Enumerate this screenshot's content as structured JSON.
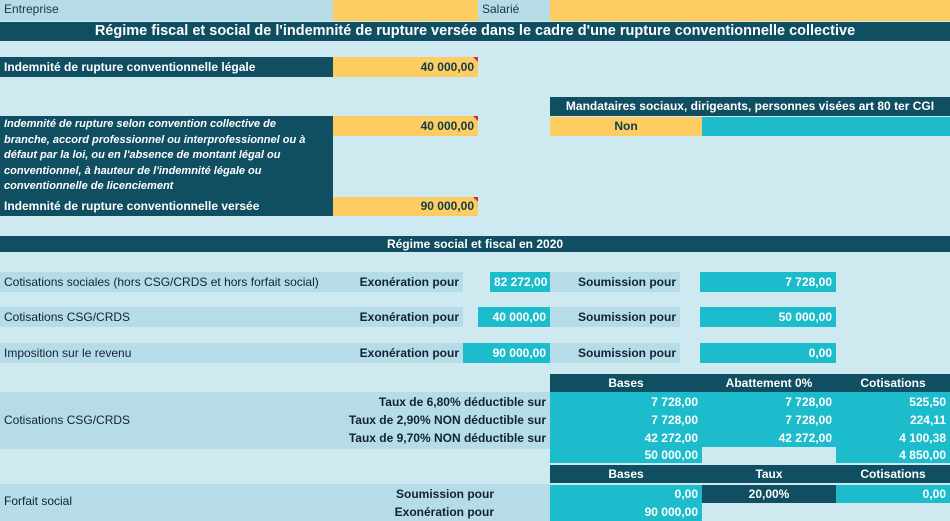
{
  "header": {
    "entreprise_label": "Entreprise",
    "salarie_label": "Salarié"
  },
  "title": "Régime fiscal et social de l'indemnité de rupture versée dans le cadre d'une rupture conventionnelle collective",
  "legale": {
    "label": "Indemnité de rupture conventionnelle légale",
    "value": "40 000,00"
  },
  "conventionnelle": {
    "lines": [
      "Indemnité de rupture selon convention collective de",
      "branche, accord professionnel ou interprofessionnel ou à",
      "défaut par la loi, ou en l'absence de montant légal ou",
      "conventionnel, à hauteur de l'indemnité légale ou",
      "conventionnelle de licenciement"
    ],
    "value": "40 000,00"
  },
  "versee": {
    "label": "Indemnité de rupture conventionnelle versée",
    "value": "90 000,00"
  },
  "mandataires": {
    "label": "Mandataires sociaux, dirigeants, personnes visées art 80 ter CGI",
    "value": "Non"
  },
  "regime_header": "Régime social et fiscal en 2020",
  "rows": [
    {
      "label": "Cotisations sociales (hors CSG/CRDS et hors forfait social)",
      "exo_label": "Exonération pour",
      "exo_value": "82 272,00",
      "sou_label": "Soumission pour",
      "sou_value": "7 728,00"
    },
    {
      "label": "Cotisations CSG/CRDS",
      "exo_label": "Exonération pour",
      "exo_value": "40 000,00",
      "sou_label": "Soumission pour",
      "sou_value": "50 000,00"
    },
    {
      "label": "Imposition sur le revenu",
      "exo_label": "Exonération pour",
      "exo_value": "90 000,00",
      "sou_label": "Soumission pour",
      "sou_value": "0,00"
    }
  ],
  "csg": {
    "label": "Cotisations CSG/CRDS",
    "headers": [
      "Bases",
      "Abattement 0%",
      "Cotisations"
    ],
    "rows": [
      {
        "label": "Taux de 6,80% déductible sur",
        "base": "7 728,00",
        "abattement": "7 728,00",
        "cotisation": "525,50"
      },
      {
        "label": "Taux de 2,90% NON déductible sur",
        "base": "7 728,00",
        "abattement": "7 728,00",
        "cotisation": "224,11"
      },
      {
        "label": "Taux de 9,70% NON déductible sur",
        "base": "42 272,00",
        "abattement": "42 272,00",
        "cotisation": "4 100,38"
      }
    ],
    "total_base": "50 000,00",
    "total_cotisation": "4 850,00"
  },
  "forfait": {
    "label": "Forfait social",
    "headers": [
      "Bases",
      "Taux",
      "Cotisations"
    ],
    "soumission_label": "Soumission pour",
    "soumission_base": "0,00",
    "taux": "20,00%",
    "cotisation": "0,00",
    "exoneration_label": "Exonération pour",
    "exoneration_base": "90 000,00"
  },
  "colors": {
    "dark": "#0f4f61",
    "yellow": "#fdcd62",
    "cyan": "#1cbccc",
    "light_blue": "#b6dde7",
    "background": "#cfe9f0"
  }
}
